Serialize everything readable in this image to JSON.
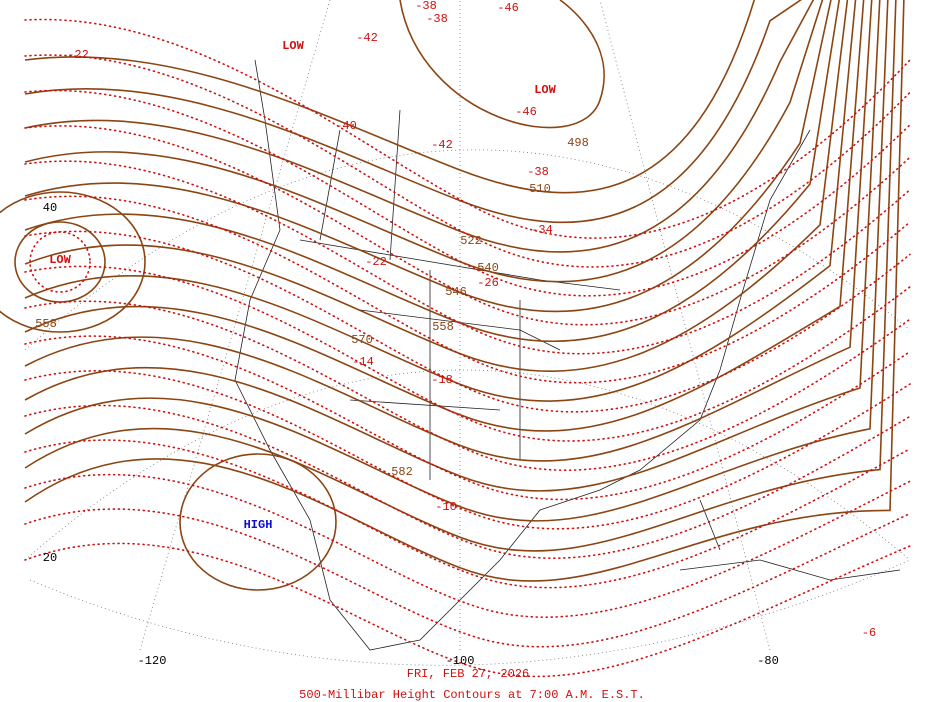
{
  "title": "500-Millibar Height Contours at 7:00 A.M. E.S.T.",
  "date": "FRI, FEB 27, 2026",
  "pressure_centers": [
    "LOW",
    "LOW",
    "LOW",
    "HIGH"
  ],
  "height_labels": [
    498,
    510,
    522,
    540,
    546,
    558,
    570,
    582,
    558
  ],
  "temperature_labels": [
    -22,
    -42,
    -38,
    -38,
    -46,
    -46,
    -40,
    -42,
    -38,
    -34,
    -22,
    -26,
    -14,
    -18,
    -10,
    -6
  ],
  "latitude_labels": [
    40,
    20
  ],
  "longitude_labels": [
    -120,
    -100,
    -80
  ]
}
